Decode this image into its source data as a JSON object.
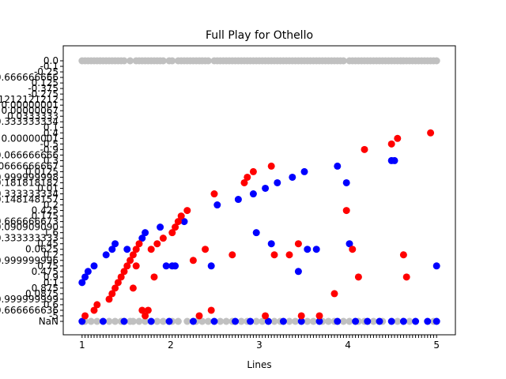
{
  "chart_data": {
    "type": "scatter",
    "title": "Full Play for Othello",
    "xlabel": "Lines",
    "ylabel": "",
    "x_tick_labels": [
      "1",
      "2",
      "3",
      "4",
      "5"
    ],
    "y_tick_labels": [
      "NaN",
      "-5",
      "0.666666636",
      "0.6",
      "-0.999999999",
      "0.0875",
      "0.875",
      "0.1",
      "0.9",
      "0.475",
      "0.75",
      "0.999999996",
      "0.2",
      "0.0625",
      "0.45",
      "0.333333333",
      "1.6",
      "0.090909090",
      "0.666666673",
      "0.175",
      "0.425",
      "0.2",
      "0.148148157",
      "0.333333334",
      "0.01",
      "0.181818182",
      "0.999999998",
      "0.0125",
      "0.0666666667",
      "0.3",
      "0.066666666",
      "-0.9",
      "-0.5",
      "0.00000001",
      "0.4",
      "0.1",
      "0.333333334",
      "0.0333333",
      "0.00000067",
      "0.00000001",
      "0.1212121212",
      "-0.275",
      "-0.375",
      "0.125",
      "0.666666666",
      "-0.25",
      "-0.1",
      "0.0"
    ],
    "series": [
      {
        "color": "#0000ff",
        "points": [
          {
            "x": 1,
            "y": 7
          },
          {
            "x": 2,
            "y": 8
          },
          {
            "x": 3,
            "y": 9
          },
          {
            "x": 5,
            "y": 10
          },
          {
            "x": 9,
            "y": 12
          },
          {
            "x": 11,
            "y": 13
          },
          {
            "x": 12,
            "y": 14
          },
          {
            "x": 16,
            "y": 13
          },
          {
            "x": 21,
            "y": 15
          },
          {
            "x": 22,
            "y": 16
          },
          {
            "x": 27,
            "y": 17
          },
          {
            "x": 29,
            "y": 10
          },
          {
            "x": 31,
            "y": 10
          },
          {
            "x": 32,
            "y": 10
          },
          {
            "x": 35,
            "y": 18
          },
          {
            "x": 44,
            "y": 10
          },
          {
            "x": 46,
            "y": 21
          },
          {
            "x": 53,
            "y": 22
          },
          {
            "x": 58,
            "y": 23
          },
          {
            "x": 59,
            "y": 16
          },
          {
            "x": 62,
            "y": 24
          },
          {
            "x": 64,
            "y": 14
          },
          {
            "x": 66,
            "y": 25
          },
          {
            "x": 71,
            "y": 26
          },
          {
            "x": 73,
            "y": 9
          },
          {
            "x": 75,
            "y": 27
          },
          {
            "x": 76,
            "y": 13
          },
          {
            "x": 79,
            "y": 13
          },
          {
            "x": 86,
            "y": 28
          },
          {
            "x": 89,
            "y": 25
          },
          {
            "x": 90,
            "y": 14
          },
          {
            "x": 104,
            "y": 29
          },
          {
            "x": 105,
            "y": 29
          },
          {
            "x": 119,
            "y": 10
          },
          {
            "x": 1,
            "y": 0
          },
          {
            "x": 8,
            "y": 0
          },
          {
            "x": 15,
            "y": 0
          },
          {
            "x": 24,
            "y": 0
          },
          {
            "x": 30,
            "y": 0
          },
          {
            "x": 38,
            "y": 0
          },
          {
            "x": 45,
            "y": 0
          },
          {
            "x": 52,
            "y": 0
          },
          {
            "x": 57,
            "y": 0
          },
          {
            "x": 63,
            "y": 0
          },
          {
            "x": 68,
            "y": 0
          },
          {
            "x": 74,
            "y": 0
          },
          {
            "x": 80,
            "y": 0
          },
          {
            "x": 86,
            "y": 0
          },
          {
            "x": 92,
            "y": 0
          },
          {
            "x": 96,
            "y": 0
          },
          {
            "x": 100,
            "y": 0
          },
          {
            "x": 104,
            "y": 0
          },
          {
            "x": 108,
            "y": 0
          },
          {
            "x": 112,
            "y": 0
          },
          {
            "x": 116,
            "y": 0
          },
          {
            "x": 119,
            "y": 0
          }
        ]
      },
      {
        "color": "#ff0000",
        "points": [
          {
            "x": 2,
            "y": 1
          },
          {
            "x": 5,
            "y": 2
          },
          {
            "x": 6,
            "y": 3
          },
          {
            "x": 10,
            "y": 4
          },
          {
            "x": 11,
            "y": 5
          },
          {
            "x": 12,
            "y": 6
          },
          {
            "x": 13,
            "y": 7
          },
          {
            "x": 14,
            "y": 8
          },
          {
            "x": 15,
            "y": 9
          },
          {
            "x": 16,
            "y": 10
          },
          {
            "x": 17,
            "y": 11
          },
          {
            "x": 18,
            "y": 12
          },
          {
            "x": 19,
            "y": 13
          },
          {
            "x": 20,
            "y": 14
          },
          {
            "x": 18,
            "y": 6
          },
          {
            "x": 19,
            "y": 10
          },
          {
            "x": 21,
            "y": 2
          },
          {
            "x": 22,
            "y": 1
          },
          {
            "x": 23,
            "y": 2
          },
          {
            "x": 24,
            "y": 13
          },
          {
            "x": 25,
            "y": 8
          },
          {
            "x": 26,
            "y": 14
          },
          {
            "x": 28,
            "y": 15
          },
          {
            "x": 31,
            "y": 16
          },
          {
            "x": 32,
            "y": 17
          },
          {
            "x": 33,
            "y": 18
          },
          {
            "x": 34,
            "y": 19
          },
          {
            "x": 36,
            "y": 20
          },
          {
            "x": 38,
            "y": 11
          },
          {
            "x": 40,
            "y": 1
          },
          {
            "x": 42,
            "y": 13
          },
          {
            "x": 44,
            "y": 2
          },
          {
            "x": 45,
            "y": 23
          },
          {
            "x": 51,
            "y": 12
          },
          {
            "x": 55,
            "y": 25
          },
          {
            "x": 56,
            "y": 26
          },
          {
            "x": 58,
            "y": 27
          },
          {
            "x": 62,
            "y": 1
          },
          {
            "x": 64,
            "y": 28
          },
          {
            "x": 65,
            "y": 12
          },
          {
            "x": 70,
            "y": 12
          },
          {
            "x": 73,
            "y": 14
          },
          {
            "x": 74,
            "y": 1
          },
          {
            "x": 80,
            "y": 1
          },
          {
            "x": 85,
            "y": 5
          },
          {
            "x": 89,
            "y": 20
          },
          {
            "x": 91,
            "y": 13
          },
          {
            "x": 93,
            "y": 8
          },
          {
            "x": 95,
            "y": 31
          },
          {
            "x": 104,
            "y": 32
          },
          {
            "x": 106,
            "y": 33
          },
          {
            "x": 108,
            "y": 12
          },
          {
            "x": 109,
            "y": 8
          },
          {
            "x": 117,
            "y": 34
          }
        ]
      },
      {
        "color": "#c0c0c0",
        "points": [
          {
            "x": 1,
            "y": 47
          },
          {
            "x": 2,
            "y": 47
          },
          {
            "x": 3,
            "y": 47
          },
          {
            "x": 4,
            "y": 47
          },
          {
            "x": 5,
            "y": 47
          },
          {
            "x": 6,
            "y": 47
          },
          {
            "x": 7,
            "y": 47
          },
          {
            "x": 8,
            "y": 47
          },
          {
            "x": 9,
            "y": 47
          },
          {
            "x": 10,
            "y": 47
          },
          {
            "x": 11,
            "y": 47
          },
          {
            "x": 12,
            "y": 47
          },
          {
            "x": 13,
            "y": 47
          },
          {
            "x": 14,
            "y": 47
          },
          {
            "x": 15,
            "y": 47
          },
          {
            "x": 17,
            "y": 47
          },
          {
            "x": 19,
            "y": 47
          },
          {
            "x": 20,
            "y": 47
          },
          {
            "x": 21,
            "y": 47
          },
          {
            "x": 22,
            "y": 47
          },
          {
            "x": 23,
            "y": 47
          },
          {
            "x": 24,
            "y": 47
          },
          {
            "x": 25,
            "y": 47
          },
          {
            "x": 26,
            "y": 47
          },
          {
            "x": 27,
            "y": 47
          },
          {
            "x": 28,
            "y": 47
          },
          {
            "x": 30,
            "y": 47
          },
          {
            "x": 31,
            "y": 47
          },
          {
            "x": 33,
            "y": 47
          },
          {
            "x": 34,
            "y": 47
          },
          {
            "x": 35,
            "y": 47
          },
          {
            "x": 36,
            "y": 47
          },
          {
            "x": 37,
            "y": 47
          },
          {
            "x": 38,
            "y": 47
          },
          {
            "x": 39,
            "y": 47
          },
          {
            "x": 40,
            "y": 47
          },
          {
            "x": 41,
            "y": 47
          },
          {
            "x": 42,
            "y": 47
          },
          {
            "x": 43,
            "y": 47
          },
          {
            "x": 45,
            "y": 47
          },
          {
            "x": 46,
            "y": 47
          },
          {
            "x": 47,
            "y": 47
          },
          {
            "x": 48,
            "y": 47
          },
          {
            "x": 49,
            "y": 47
          },
          {
            "x": 50,
            "y": 47
          },
          {
            "x": 51,
            "y": 47
          },
          {
            "x": 52,
            "y": 47
          },
          {
            "x": 53,
            "y": 47
          },
          {
            "x": 54,
            "y": 47
          },
          {
            "x": 55,
            "y": 47
          },
          {
            "x": 56,
            "y": 47
          },
          {
            "x": 57,
            "y": 47
          },
          {
            "x": 58,
            "y": 47
          },
          {
            "x": 59,
            "y": 47
          },
          {
            "x": 60,
            "y": 47
          },
          {
            "x": 61,
            "y": 47
          },
          {
            "x": 62,
            "y": 47
          },
          {
            "x": 63,
            "y": 47
          },
          {
            "x": 64,
            "y": 47
          },
          {
            "x": 65,
            "y": 47
          },
          {
            "x": 66,
            "y": 47
          },
          {
            "x": 67,
            "y": 47
          },
          {
            "x": 68,
            "y": 47
          },
          {
            "x": 69,
            "y": 47
          },
          {
            "x": 70,
            "y": 47
          },
          {
            "x": 71,
            "y": 47
          },
          {
            "x": 72,
            "y": 47
          },
          {
            "x": 73,
            "y": 47
          },
          {
            "x": 74,
            "y": 47
          },
          {
            "x": 75,
            "y": 47
          },
          {
            "x": 76,
            "y": 47
          },
          {
            "x": 77,
            "y": 47
          },
          {
            "x": 78,
            "y": 47
          },
          {
            "x": 79,
            "y": 47
          },
          {
            "x": 80,
            "y": 47
          },
          {
            "x": 81,
            "y": 47
          },
          {
            "x": 82,
            "y": 47
          },
          {
            "x": 83,
            "y": 47
          },
          {
            "x": 84,
            "y": 47
          },
          {
            "x": 85,
            "y": 47
          },
          {
            "x": 86,
            "y": 47
          },
          {
            "x": 87,
            "y": 47
          },
          {
            "x": 88,
            "y": 47
          },
          {
            "x": 90,
            "y": 47
          },
          {
            "x": 91,
            "y": 47
          },
          {
            "x": 92,
            "y": 47
          },
          {
            "x": 93,
            "y": 47
          },
          {
            "x": 94,
            "y": 47
          },
          {
            "x": 95,
            "y": 47
          },
          {
            "x": 96,
            "y": 47
          },
          {
            "x": 97,
            "y": 47
          },
          {
            "x": 98,
            "y": 47
          },
          {
            "x": 99,
            "y": 47
          },
          {
            "x": 100,
            "y": 47
          },
          {
            "x": 101,
            "y": 47
          },
          {
            "x": 102,
            "y": 47
          },
          {
            "x": 103,
            "y": 47
          },
          {
            "x": 104,
            "y": 47
          },
          {
            "x": 105,
            "y": 47
          },
          {
            "x": 106,
            "y": 47
          },
          {
            "x": 107,
            "y": 47
          },
          {
            "x": 108,
            "y": 47
          },
          {
            "x": 109,
            "y": 47
          },
          {
            "x": 110,
            "y": 47
          },
          {
            "x": 111,
            "y": 47
          },
          {
            "x": 112,
            "y": 47
          },
          {
            "x": 113,
            "y": 47
          },
          {
            "x": 114,
            "y": 47
          },
          {
            "x": 115,
            "y": 47
          },
          {
            "x": 116,
            "y": 47
          },
          {
            "x": 117,
            "y": 47
          },
          {
            "x": 118,
            "y": 47
          },
          {
            "x": 119,
            "y": 47
          },
          {
            "x": 1,
            "y": 0
          },
          {
            "x": 2,
            "y": 0
          },
          {
            "x": 4,
            "y": 0
          },
          {
            "x": 6,
            "y": 0
          },
          {
            "x": 10,
            "y": 0
          },
          {
            "x": 12,
            "y": 0
          },
          {
            "x": 14,
            "y": 0
          },
          {
            "x": 17,
            "y": 0
          },
          {
            "x": 18,
            "y": 0
          },
          {
            "x": 20,
            "y": 0
          },
          {
            "x": 22,
            "y": 0
          },
          {
            "x": 26,
            "y": 0
          },
          {
            "x": 28,
            "y": 0
          },
          {
            "x": 31,
            "y": 0
          },
          {
            "x": 33,
            "y": 0
          },
          {
            "x": 36,
            "y": 0
          },
          {
            "x": 39,
            "y": 0
          },
          {
            "x": 41,
            "y": 0
          },
          {
            "x": 43,
            "y": 0
          },
          {
            "x": 47,
            "y": 0
          },
          {
            "x": 49,
            "y": 0
          },
          {
            "x": 51,
            "y": 0
          },
          {
            "x": 54,
            "y": 0
          },
          {
            "x": 56,
            "y": 0
          },
          {
            "x": 59,
            "y": 0
          },
          {
            "x": 61,
            "y": 0
          },
          {
            "x": 65,
            "y": 0
          },
          {
            "x": 67,
            "y": 0
          },
          {
            "x": 70,
            "y": 0
          },
          {
            "x": 72,
            "y": 0
          },
          {
            "x": 76,
            "y": 0
          },
          {
            "x": 78,
            "y": 0
          },
          {
            "x": 81,
            "y": 0
          },
          {
            "x": 83,
            "y": 0
          },
          {
            "x": 85,
            "y": 0
          },
          {
            "x": 88,
            "y": 0
          },
          {
            "x": 90,
            "y": 0
          },
          {
            "x": 93,
            "y": 0
          },
          {
            "x": 95,
            "y": 0
          },
          {
            "x": 98,
            "y": 0
          },
          {
            "x": 101,
            "y": 0
          },
          {
            "x": 106,
            "y": 0
          },
          {
            "x": 110,
            "y": 0
          },
          {
            "x": 118,
            "y": 0
          }
        ]
      }
    ],
    "xlim": [
      0,
      120
    ],
    "ylim": [
      0,
      47
    ],
    "grid": false,
    "legend": "none"
  }
}
